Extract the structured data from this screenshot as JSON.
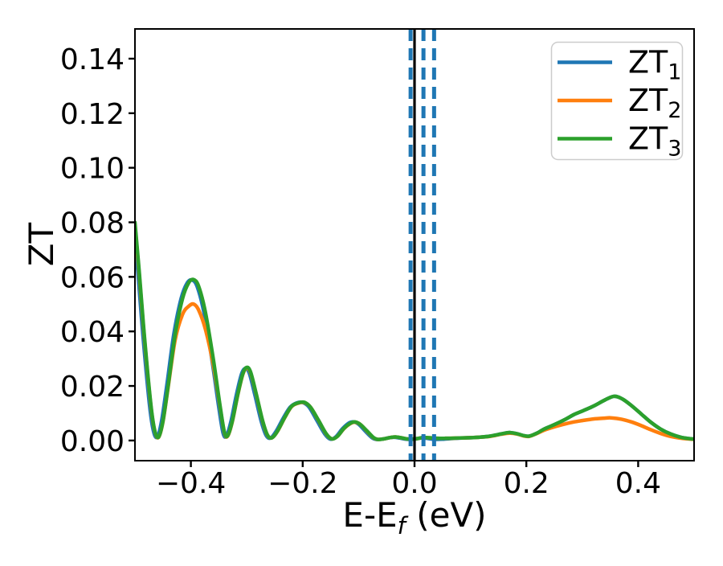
{
  "figure": {
    "background": "#ffffff",
    "ylabel": "ZT",
    "xlabel_parts": {
      "prefix": "E-E",
      "sub": "f",
      "suffix": " (eV)"
    },
    "x_tick_labels": [
      "−0.4",
      "−0.2",
      "0.0",
      "0.2",
      "0.4"
    ],
    "y_tick_labels": [
      "0.00",
      "0.02",
      "0.04",
      "0.06",
      "0.08",
      "0.10",
      "0.12",
      "0.14"
    ]
  },
  "legend": {
    "entries": [
      {
        "label_main": "ZT",
        "label_sub": "1",
        "color": "#1f77b4"
      },
      {
        "label_main": "ZT",
        "label_sub": "2",
        "color": "#ff7f0e"
      },
      {
        "label_main": "ZT",
        "label_sub": "3",
        "color": "#2ca02c"
      }
    ]
  },
  "chart_data": {
    "type": "line",
    "title": "",
    "xlabel": "E-E_f (eV)",
    "ylabel": "ZT",
    "xlim": [
      -0.5,
      0.5
    ],
    "ylim": [
      -0.0074,
      0.1509
    ],
    "x_ticks": [
      -0.4,
      -0.2,
      0.0,
      0.2,
      0.4
    ],
    "y_ticks": [
      0.0,
      0.02,
      0.04,
      0.06,
      0.08,
      0.1,
      0.12,
      0.14
    ],
    "grid": false,
    "legend_position": "upper right",
    "vlines": [
      {
        "x": 0.0,
        "color": "#000000",
        "style": "solid",
        "width": 3.2
      },
      {
        "x": -0.007,
        "color": "#1f77b4",
        "style": "dashed",
        "width": 5
      },
      {
        "x": 0.016,
        "color": "#1f77b4",
        "style": "dashed",
        "width": 5
      },
      {
        "x": 0.035,
        "color": "#1f77b4",
        "style": "dashed",
        "width": 5
      }
    ],
    "series": [
      {
        "name": "ZT1",
        "color": "#1f77b4",
        "style": "solid",
        "points": [
          [
            -0.5,
            0.074
          ],
          [
            -0.4945,
            0.061
          ],
          [
            -0.4855,
            0.038
          ],
          [
            -0.4745,
            0.014
          ],
          [
            -0.4675,
            0.004
          ],
          [
            -0.4605,
            0.0012
          ],
          [
            -0.4525,
            0.007
          ],
          [
            -0.4425,
            0.021
          ],
          [
            -0.4305,
            0.039
          ],
          [
            -0.4175,
            0.052
          ],
          [
            -0.4065,
            0.0578
          ],
          [
            -0.3975,
            0.0588
          ],
          [
            -0.3885,
            0.0563
          ],
          [
            -0.3765,
            0.0468
          ],
          [
            -0.3625,
            0.0298
          ],
          [
            -0.3505,
            0.0128
          ],
          [
            -0.3425,
            0.0028
          ],
          [
            -0.3365,
            0.0017
          ],
          [
            -0.3285,
            0.0068
          ],
          [
            -0.3185,
            0.0168
          ],
          [
            -0.3095,
            0.0243
          ],
          [
            -0.3025,
            0.0264
          ],
          [
            -0.2955,
            0.0247
          ],
          [
            -0.2855,
            0.0167
          ],
          [
            -0.2745,
            0.0073
          ],
          [
            -0.2655,
            0.0019
          ],
          [
            -0.2575,
            0.0009
          ],
          [
            -0.2475,
            0.0034
          ],
          [
            -0.2345,
            0.0083
          ],
          [
            -0.2225,
            0.0122
          ],
          [
            -0.2105,
            0.0138
          ],
          [
            -0.1995,
            0.0139
          ],
          [
            -0.1885,
            0.0122
          ],
          [
            -0.1745,
            0.0073
          ],
          [
            -0.1605,
            0.0024
          ],
          [
            -0.1505,
            0.0005
          ],
          [
            -0.1405,
            0.0014
          ],
          [
            -0.1285,
            0.0044
          ],
          [
            -0.1165,
            0.0065
          ],
          [
            -0.1085,
            0.0068
          ],
          [
            -0.0995,
            0.0059
          ],
          [
            -0.0875,
            0.0033
          ],
          [
            -0.0765,
            0.0011
          ],
          [
            -0.0685,
            0.0004
          ],
          [
            -0.0575,
            0.0005
          ],
          [
            -0.0455,
            0.001
          ],
          [
            -0.0365,
            0.0012
          ],
          [
            -0.0265,
            0.0009
          ],
          [
            -0.0165,
            0.0005
          ],
          [
            -0.0075,
            0.0004
          ],
          [
            0.0025,
            0.0006
          ],
          [
            0.0135,
            0.001
          ],
          [
            0.025,
            0.0007
          ],
          [
            0.038,
            0.0004
          ],
          [
            0.052,
            0.0005
          ],
          [
            0.0725,
            0.0008
          ],
          [
            0.095,
            0.001
          ],
          [
            0.115,
            0.0012
          ],
          [
            0.135,
            0.0016
          ],
          [
            0.155,
            0.0024
          ],
          [
            0.17,
            0.0029
          ],
          [
            0.183,
            0.0025
          ],
          [
            0.195,
            0.0018
          ],
          [
            0.205,
            0.0016
          ],
          [
            0.218,
            0.0026
          ],
          [
            0.232,
            0.0042
          ],
          [
            0.25,
            0.0058
          ],
          [
            0.27,
            0.0078
          ],
          [
            0.285,
            0.0095
          ],
          [
            0.3,
            0.0108
          ],
          [
            0.32,
            0.0126
          ],
          [
            0.34,
            0.0148
          ],
          [
            0.357,
            0.0162
          ],
          [
            0.372,
            0.0152
          ],
          [
            0.388,
            0.0128
          ],
          [
            0.405,
            0.0098
          ],
          [
            0.422,
            0.0068
          ],
          [
            0.44,
            0.0042
          ],
          [
            0.458,
            0.0024
          ],
          [
            0.478,
            0.0011
          ],
          [
            0.5,
            0.0005
          ]
        ]
      },
      {
        "name": "ZT2",
        "color": "#ff7f0e",
        "style": "solid",
        "points": [
          [
            -0.5,
            0.079
          ],
          [
            -0.492,
            0.06
          ],
          [
            -0.483,
            0.0372
          ],
          [
            -0.472,
            0.0135
          ],
          [
            -0.465,
            0.0038
          ],
          [
            -0.458,
            0.0011
          ],
          [
            -0.45,
            0.0068
          ],
          [
            -0.44,
            0.0205
          ],
          [
            -0.428,
            0.037
          ],
          [
            -0.415,
            0.0462
          ],
          [
            -0.404,
            0.0492
          ],
          [
            -0.395,
            0.05
          ],
          [
            -0.386,
            0.0478
          ],
          [
            -0.374,
            0.0408
          ],
          [
            -0.36,
            0.0278
          ],
          [
            -0.348,
            0.0125
          ],
          [
            -0.34,
            0.0028
          ],
          [
            -0.334,
            0.0017
          ],
          [
            -0.326,
            0.0068
          ],
          [
            -0.316,
            0.0168
          ],
          [
            -0.307,
            0.0243
          ],
          [
            -0.3,
            0.0265
          ],
          [
            -0.293,
            0.0247
          ],
          [
            -0.283,
            0.0168
          ],
          [
            -0.272,
            0.0073
          ],
          [
            -0.263,
            0.0019
          ],
          [
            -0.255,
            0.001
          ],
          [
            -0.245,
            0.0034
          ],
          [
            -0.232,
            0.0084
          ],
          [
            -0.22,
            0.0124
          ],
          [
            -0.208,
            0.0137
          ],
          [
            -0.197,
            0.0139
          ],
          [
            -0.186,
            0.0122
          ],
          [
            -0.172,
            0.0074
          ],
          [
            -0.158,
            0.0024
          ],
          [
            -0.148,
            0.0006
          ],
          [
            -0.138,
            0.0015
          ],
          [
            -0.126,
            0.0044
          ],
          [
            -0.114,
            0.0063
          ],
          [
            -0.106,
            0.0067
          ],
          [
            -0.097,
            0.0059
          ],
          [
            -0.085,
            0.0034
          ],
          [
            -0.074,
            0.0011
          ],
          [
            -0.066,
            0.0004
          ],
          [
            -0.055,
            0.0006
          ],
          [
            -0.043,
            0.0011
          ],
          [
            -0.034,
            0.0013
          ],
          [
            -0.024,
            0.001
          ],
          [
            -0.014,
            0.0006
          ],
          [
            -0.005,
            0.0005
          ],
          [
            0.005,
            0.0007
          ],
          [
            0.016,
            0.0011
          ],
          [
            0.027,
            0.001
          ],
          [
            0.04,
            0.0008
          ],
          [
            0.055,
            0.0008
          ],
          [
            0.075,
            0.0009
          ],
          [
            0.095,
            0.001
          ],
          [
            0.115,
            0.0012
          ],
          [
            0.135,
            0.0015
          ],
          [
            0.155,
            0.0023
          ],
          [
            0.17,
            0.0027
          ],
          [
            0.183,
            0.0024
          ],
          [
            0.195,
            0.0017
          ],
          [
            0.205,
            0.0015
          ],
          [
            0.218,
            0.0025
          ],
          [
            0.232,
            0.0038
          ],
          [
            0.25,
            0.005
          ],
          [
            0.27,
            0.0061
          ],
          [
            0.285,
            0.0068
          ],
          [
            0.3,
            0.0073
          ],
          [
            0.32,
            0.0079
          ],
          [
            0.34,
            0.0082
          ],
          [
            0.351,
            0.0083
          ],
          [
            0.37,
            0.0078
          ],
          [
            0.388,
            0.0068
          ],
          [
            0.405,
            0.0055
          ],
          [
            0.422,
            0.004
          ],
          [
            0.44,
            0.0026
          ],
          [
            0.458,
            0.0015
          ],
          [
            0.478,
            0.0008
          ],
          [
            0.5,
            0.0004
          ]
        ]
      },
      {
        "name": "ZT3",
        "color": "#2ca02c",
        "style": "solid",
        "points": [
          [
            -0.5,
            0.08
          ],
          [
            -0.492,
            0.061
          ],
          [
            -0.483,
            0.038
          ],
          [
            -0.472,
            0.014
          ],
          [
            -0.465,
            0.004
          ],
          [
            -0.458,
            0.0012
          ],
          [
            -0.45,
            0.007
          ],
          [
            -0.44,
            0.021
          ],
          [
            -0.428,
            0.039
          ],
          [
            -0.415,
            0.052
          ],
          [
            -0.404,
            0.0578
          ],
          [
            -0.395,
            0.059
          ],
          [
            -0.386,
            0.0565
          ],
          [
            -0.374,
            0.047
          ],
          [
            -0.36,
            0.03
          ],
          [
            -0.348,
            0.013
          ],
          [
            -0.34,
            0.003
          ],
          [
            -0.334,
            0.0018
          ],
          [
            -0.326,
            0.007
          ],
          [
            -0.316,
            0.017
          ],
          [
            -0.307,
            0.0245
          ],
          [
            -0.3,
            0.0268
          ],
          [
            -0.293,
            0.025
          ],
          [
            -0.283,
            0.017
          ],
          [
            -0.272,
            0.0075
          ],
          [
            -0.263,
            0.002
          ],
          [
            -0.255,
            0.001
          ],
          [
            -0.245,
            0.0035
          ],
          [
            -0.232,
            0.0085
          ],
          [
            -0.22,
            0.0125
          ],
          [
            -0.208,
            0.0138
          ],
          [
            -0.197,
            0.014
          ],
          [
            -0.186,
            0.0122
          ],
          [
            -0.172,
            0.0075
          ],
          [
            -0.158,
            0.0025
          ],
          [
            -0.148,
            0.0006
          ],
          [
            -0.138,
            0.0015
          ],
          [
            -0.126,
            0.0045
          ],
          [
            -0.114,
            0.0064
          ],
          [
            -0.106,
            0.0068
          ],
          [
            -0.097,
            0.0059
          ],
          [
            -0.085,
            0.0035
          ],
          [
            -0.074,
            0.0012
          ],
          [
            -0.066,
            0.0004
          ],
          [
            -0.055,
            0.0006
          ],
          [
            -0.043,
            0.0011
          ],
          [
            -0.034,
            0.0013
          ],
          [
            -0.024,
            0.001
          ],
          [
            -0.014,
            0.0006
          ],
          [
            -0.005,
            0.0005
          ],
          [
            0.005,
            0.0007
          ],
          [
            0.016,
            0.0011
          ],
          [
            0.027,
            0.001
          ],
          [
            0.04,
            0.0008
          ],
          [
            0.055,
            0.0008
          ],
          [
            0.075,
            0.0009
          ],
          [
            0.095,
            0.001
          ],
          [
            0.115,
            0.0012
          ],
          [
            0.135,
            0.0016
          ],
          [
            0.155,
            0.0024
          ],
          [
            0.17,
            0.0029
          ],
          [
            0.183,
            0.0025
          ],
          [
            0.195,
            0.0018
          ],
          [
            0.205,
            0.0016
          ],
          [
            0.218,
            0.0026
          ],
          [
            0.232,
            0.0042
          ],
          [
            0.25,
            0.0058
          ],
          [
            0.27,
            0.0078
          ],
          [
            0.285,
            0.0095
          ],
          [
            0.3,
            0.0108
          ],
          [
            0.32,
            0.0126
          ],
          [
            0.34,
            0.0148
          ],
          [
            0.357,
            0.0162
          ],
          [
            0.372,
            0.0152
          ],
          [
            0.388,
            0.0128
          ],
          [
            0.405,
            0.0098
          ],
          [
            0.422,
            0.0068
          ],
          [
            0.44,
            0.0042
          ],
          [
            0.458,
            0.0024
          ],
          [
            0.478,
            0.0011
          ],
          [
            0.5,
            0.0005
          ]
        ]
      }
    ]
  }
}
